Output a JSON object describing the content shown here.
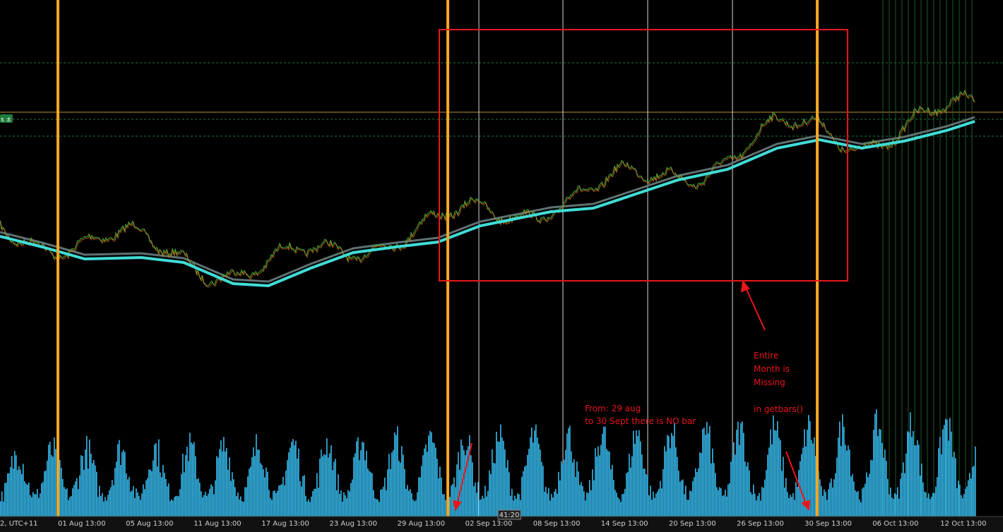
{
  "axis": {
    "time_labels": [
      "2, UTC+11",
      "01 Aug 13:00",
      "05 Aug 13:00",
      "11 Aug 13:00",
      "17 Aug 13:00",
      "23 Aug 13:00",
      "29 Aug 13:00",
      "02 Sep 13:00",
      "08 Sep 13:00",
      "14 Sep 13:00",
      "20 Sep 13:00",
      "26 Sep 13:00",
      "30 Sep 13:00",
      "06 Oct 13:00",
      "12 Oct 13:00"
    ]
  },
  "cursor_time": "41:20",
  "price_tag": "s ±",
  "annotations": {
    "missing_note": [
      "Entire",
      "Month is",
      "Missing",
      "in getbars()"
    ],
    "range_note": [
      "From: 29 aug",
      "to 30 Sept there is NO bar"
    ]
  }
}
